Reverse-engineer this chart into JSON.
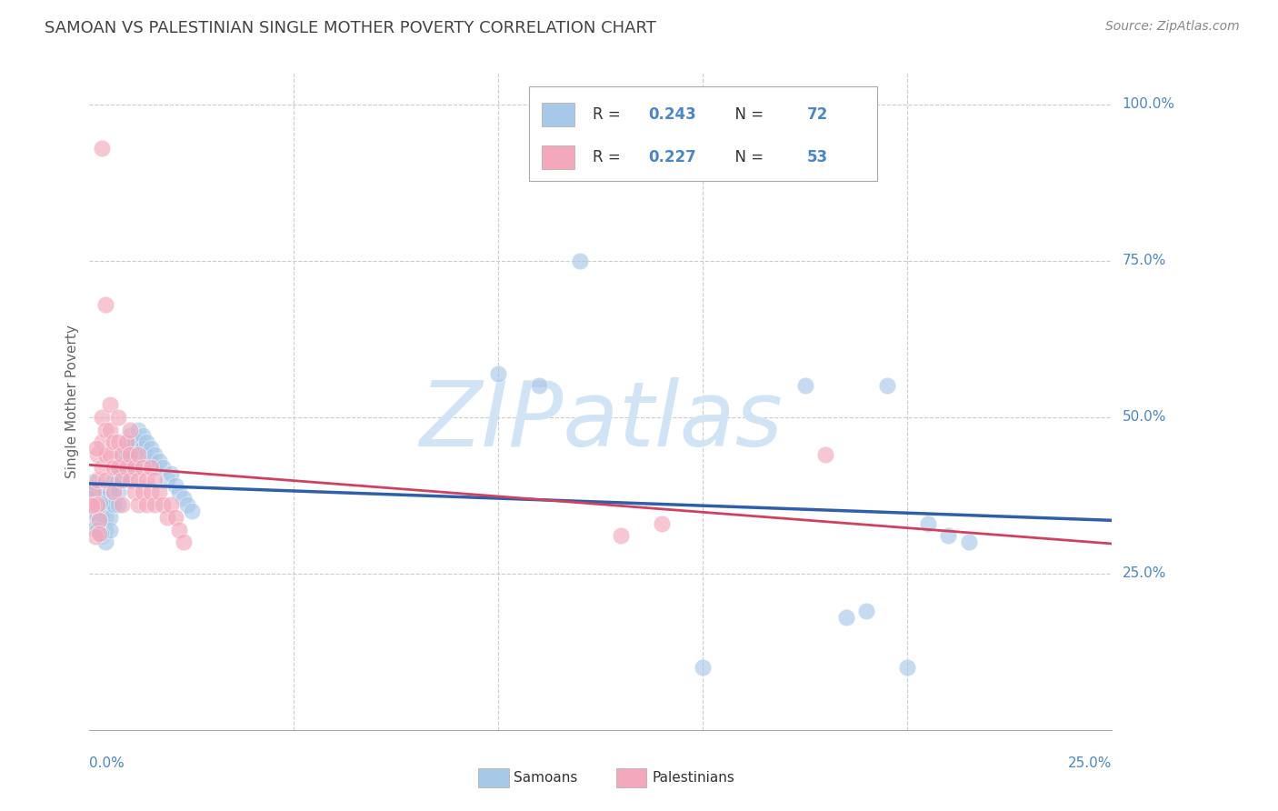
{
  "title": "SAMOAN VS PALESTINIAN SINGLE MOTHER POVERTY CORRELATION CHART",
  "source": "Source: ZipAtlas.com",
  "ylabel": "Single Mother Poverty",
  "xlim": [
    0.0,
    0.25
  ],
  "ylim": [
    0.0,
    1.05
  ],
  "samoan_R": 0.243,
  "samoan_N": 72,
  "palestinian_R": 0.227,
  "palestinian_N": 53,
  "samoan_color": "#A8C8E8",
  "palestinian_color": "#F4A8BC",
  "samoan_line_color": "#2F5FAA",
  "palestinian_line_color": "#D04060",
  "watermark_text": "ZIPatlas",
  "watermark_color": "#D0E4F5",
  "background_color": "#FFFFFF",
  "grid_color": "#CCCCCC",
  "title_color": "#444444",
  "axis_label_color": "#4A86C8",
  "ytick_labels": [
    "25.0%",
    "50.0%",
    "75.0%",
    "100.0%"
  ],
  "ytick_values": [
    0.25,
    0.5,
    0.75,
    1.0
  ],
  "xtick_labels": [
    "0.0%",
    "25.0%"
  ],
  "legend_text_color": "#333333",
  "legend_val_color": "#4A86C8",
  "samoan_x": [
    0.001,
    0.001,
    0.001,
    0.001,
    0.002,
    0.002,
    0.002,
    0.002,
    0.002,
    0.003,
    0.003,
    0.003,
    0.003,
    0.004,
    0.004,
    0.004,
    0.004,
    0.005,
    0.005,
    0.005,
    0.005,
    0.006,
    0.006,
    0.006,
    0.007,
    0.007,
    0.007,
    0.007,
    0.008,
    0.008,
    0.008,
    0.009,
    0.009,
    0.009,
    0.01,
    0.01,
    0.01,
    0.011,
    0.011,
    0.011,
    0.012,
    0.012,
    0.012,
    0.013,
    0.013,
    0.014,
    0.014,
    0.015,
    0.015,
    0.016,
    0.016,
    0.017,
    0.018,
    0.019,
    0.02,
    0.021,
    0.022,
    0.023,
    0.024,
    0.025,
    0.1,
    0.11,
    0.12,
    0.15,
    0.175,
    0.195,
    0.2,
    0.205,
    0.21,
    0.215,
    0.19,
    0.185
  ],
  "samoan_y": [
    0.38,
    0.36,
    0.35,
    0.34,
    0.38,
    0.36,
    0.34,
    0.33,
    0.32,
    0.37,
    0.35,
    0.33,
    0.31,
    0.36,
    0.34,
    0.32,
    0.3,
    0.38,
    0.36,
    0.34,
    0.32,
    0.4,
    0.38,
    0.36,
    0.42,
    0.4,
    0.38,
    0.36,
    0.44,
    0.42,
    0.4,
    0.45,
    0.43,
    0.41,
    0.47,
    0.45,
    0.43,
    0.46,
    0.44,
    0.42,
    0.48,
    0.46,
    0.44,
    0.47,
    0.45,
    0.46,
    0.44,
    0.45,
    0.43,
    0.44,
    0.42,
    0.43,
    0.42,
    0.4,
    0.41,
    0.39,
    0.38,
    0.37,
    0.36,
    0.35,
    0.57,
    0.55,
    0.75,
    0.1,
    0.55,
    0.55,
    0.1,
    0.33,
    0.31,
    0.3,
    0.19,
    0.18
  ],
  "palestinian_x": [
    0.001,
    0.001,
    0.002,
    0.002,
    0.002,
    0.003,
    0.003,
    0.003,
    0.004,
    0.004,
    0.004,
    0.005,
    0.005,
    0.005,
    0.006,
    0.006,
    0.006,
    0.007,
    0.007,
    0.007,
    0.008,
    0.008,
    0.008,
    0.009,
    0.009,
    0.01,
    0.01,
    0.01,
    0.011,
    0.011,
    0.012,
    0.012,
    0.012,
    0.013,
    0.013,
    0.014,
    0.014,
    0.015,
    0.015,
    0.016,
    0.016,
    0.017,
    0.018,
    0.019,
    0.02,
    0.021,
    0.022,
    0.023,
    0.003,
    0.004,
    0.18,
    0.14,
    0.13
  ],
  "palestinian_y": [
    0.38,
    0.36,
    0.44,
    0.4,
    0.36,
    0.5,
    0.46,
    0.42,
    0.48,
    0.44,
    0.4,
    0.52,
    0.48,
    0.44,
    0.46,
    0.42,
    0.38,
    0.5,
    0.46,
    0.42,
    0.44,
    0.4,
    0.36,
    0.46,
    0.42,
    0.48,
    0.44,
    0.4,
    0.42,
    0.38,
    0.44,
    0.4,
    0.36,
    0.42,
    0.38,
    0.4,
    0.36,
    0.42,
    0.38,
    0.4,
    0.36,
    0.38,
    0.36,
    0.34,
    0.36,
    0.34,
    0.32,
    0.3,
    0.93,
    0.68,
    0.44,
    0.33,
    0.31
  ]
}
